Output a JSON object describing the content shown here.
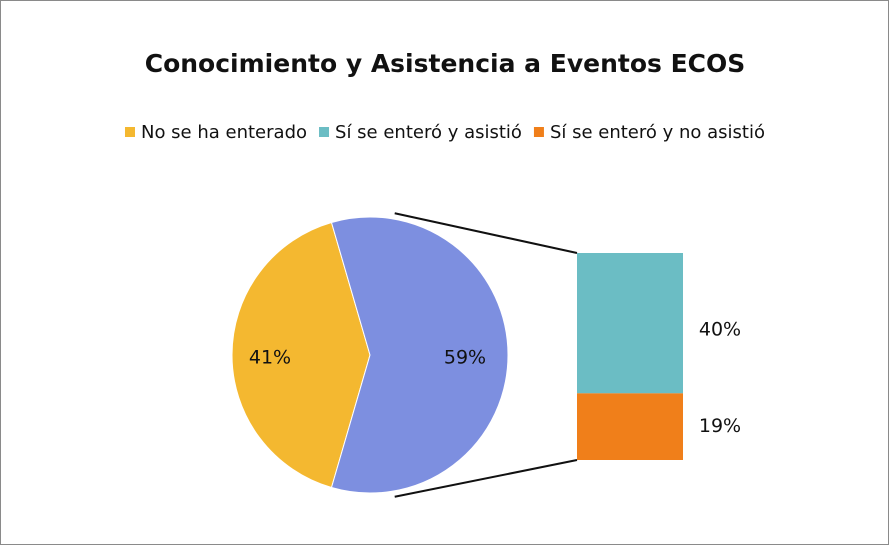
{
  "chart_data": {
    "type": "pie",
    "title": "Conocimiento y Asistencia a Eventos ECOS",
    "categories": [
      "No se ha enterado",
      "Sí se enteró y  asistió",
      "Sí se enteró y no asistió"
    ],
    "values": [
      41,
      40,
      19
    ],
    "value_labels": [
      "41%",
      "40%",
      "19%"
    ],
    "colors": [
      "#f4b830",
      "#6bbdc4",
      "#f07f1a"
    ],
    "combined": {
      "value": 59,
      "label": "59%",
      "color": "#7d8fe0"
    },
    "legend": "top"
  }
}
